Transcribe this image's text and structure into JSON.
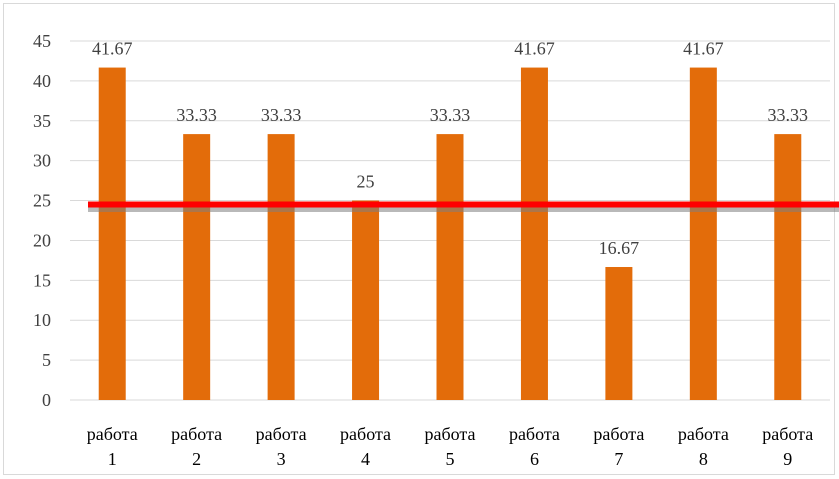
{
  "chart_data": {
    "type": "bar",
    "categories": [
      [
        "работа",
        "1"
      ],
      [
        "работа",
        "2"
      ],
      [
        "работа",
        "3"
      ],
      [
        "работа",
        "4"
      ],
      [
        "работа",
        "5"
      ],
      [
        "работа",
        "6"
      ],
      [
        "работа",
        "7"
      ],
      [
        "работа",
        "8"
      ],
      [
        "работа",
        "9"
      ]
    ],
    "values": [
      41.67,
      33.33,
      33.33,
      25,
      33.33,
      41.67,
      16.67,
      41.67,
      33.33
    ],
    "value_labels": [
      "41.67",
      "33.33",
      "33.33",
      "25",
      "33.33",
      "41.67",
      "16.67",
      "41.67",
      "33.33"
    ],
    "y_ticks": [
      "0",
      "5",
      "10",
      "15",
      "20",
      "25",
      "30",
      "35",
      "40",
      "45"
    ],
    "ylim": [
      0,
      45
    ],
    "reference_line": 24.5,
    "grid": true,
    "colors": {
      "bar": "#E36C0A",
      "reference_line": "#FF0000",
      "grid": "#D9D9D9"
    },
    "title": "",
    "xlabel": "",
    "ylabel": ""
  }
}
